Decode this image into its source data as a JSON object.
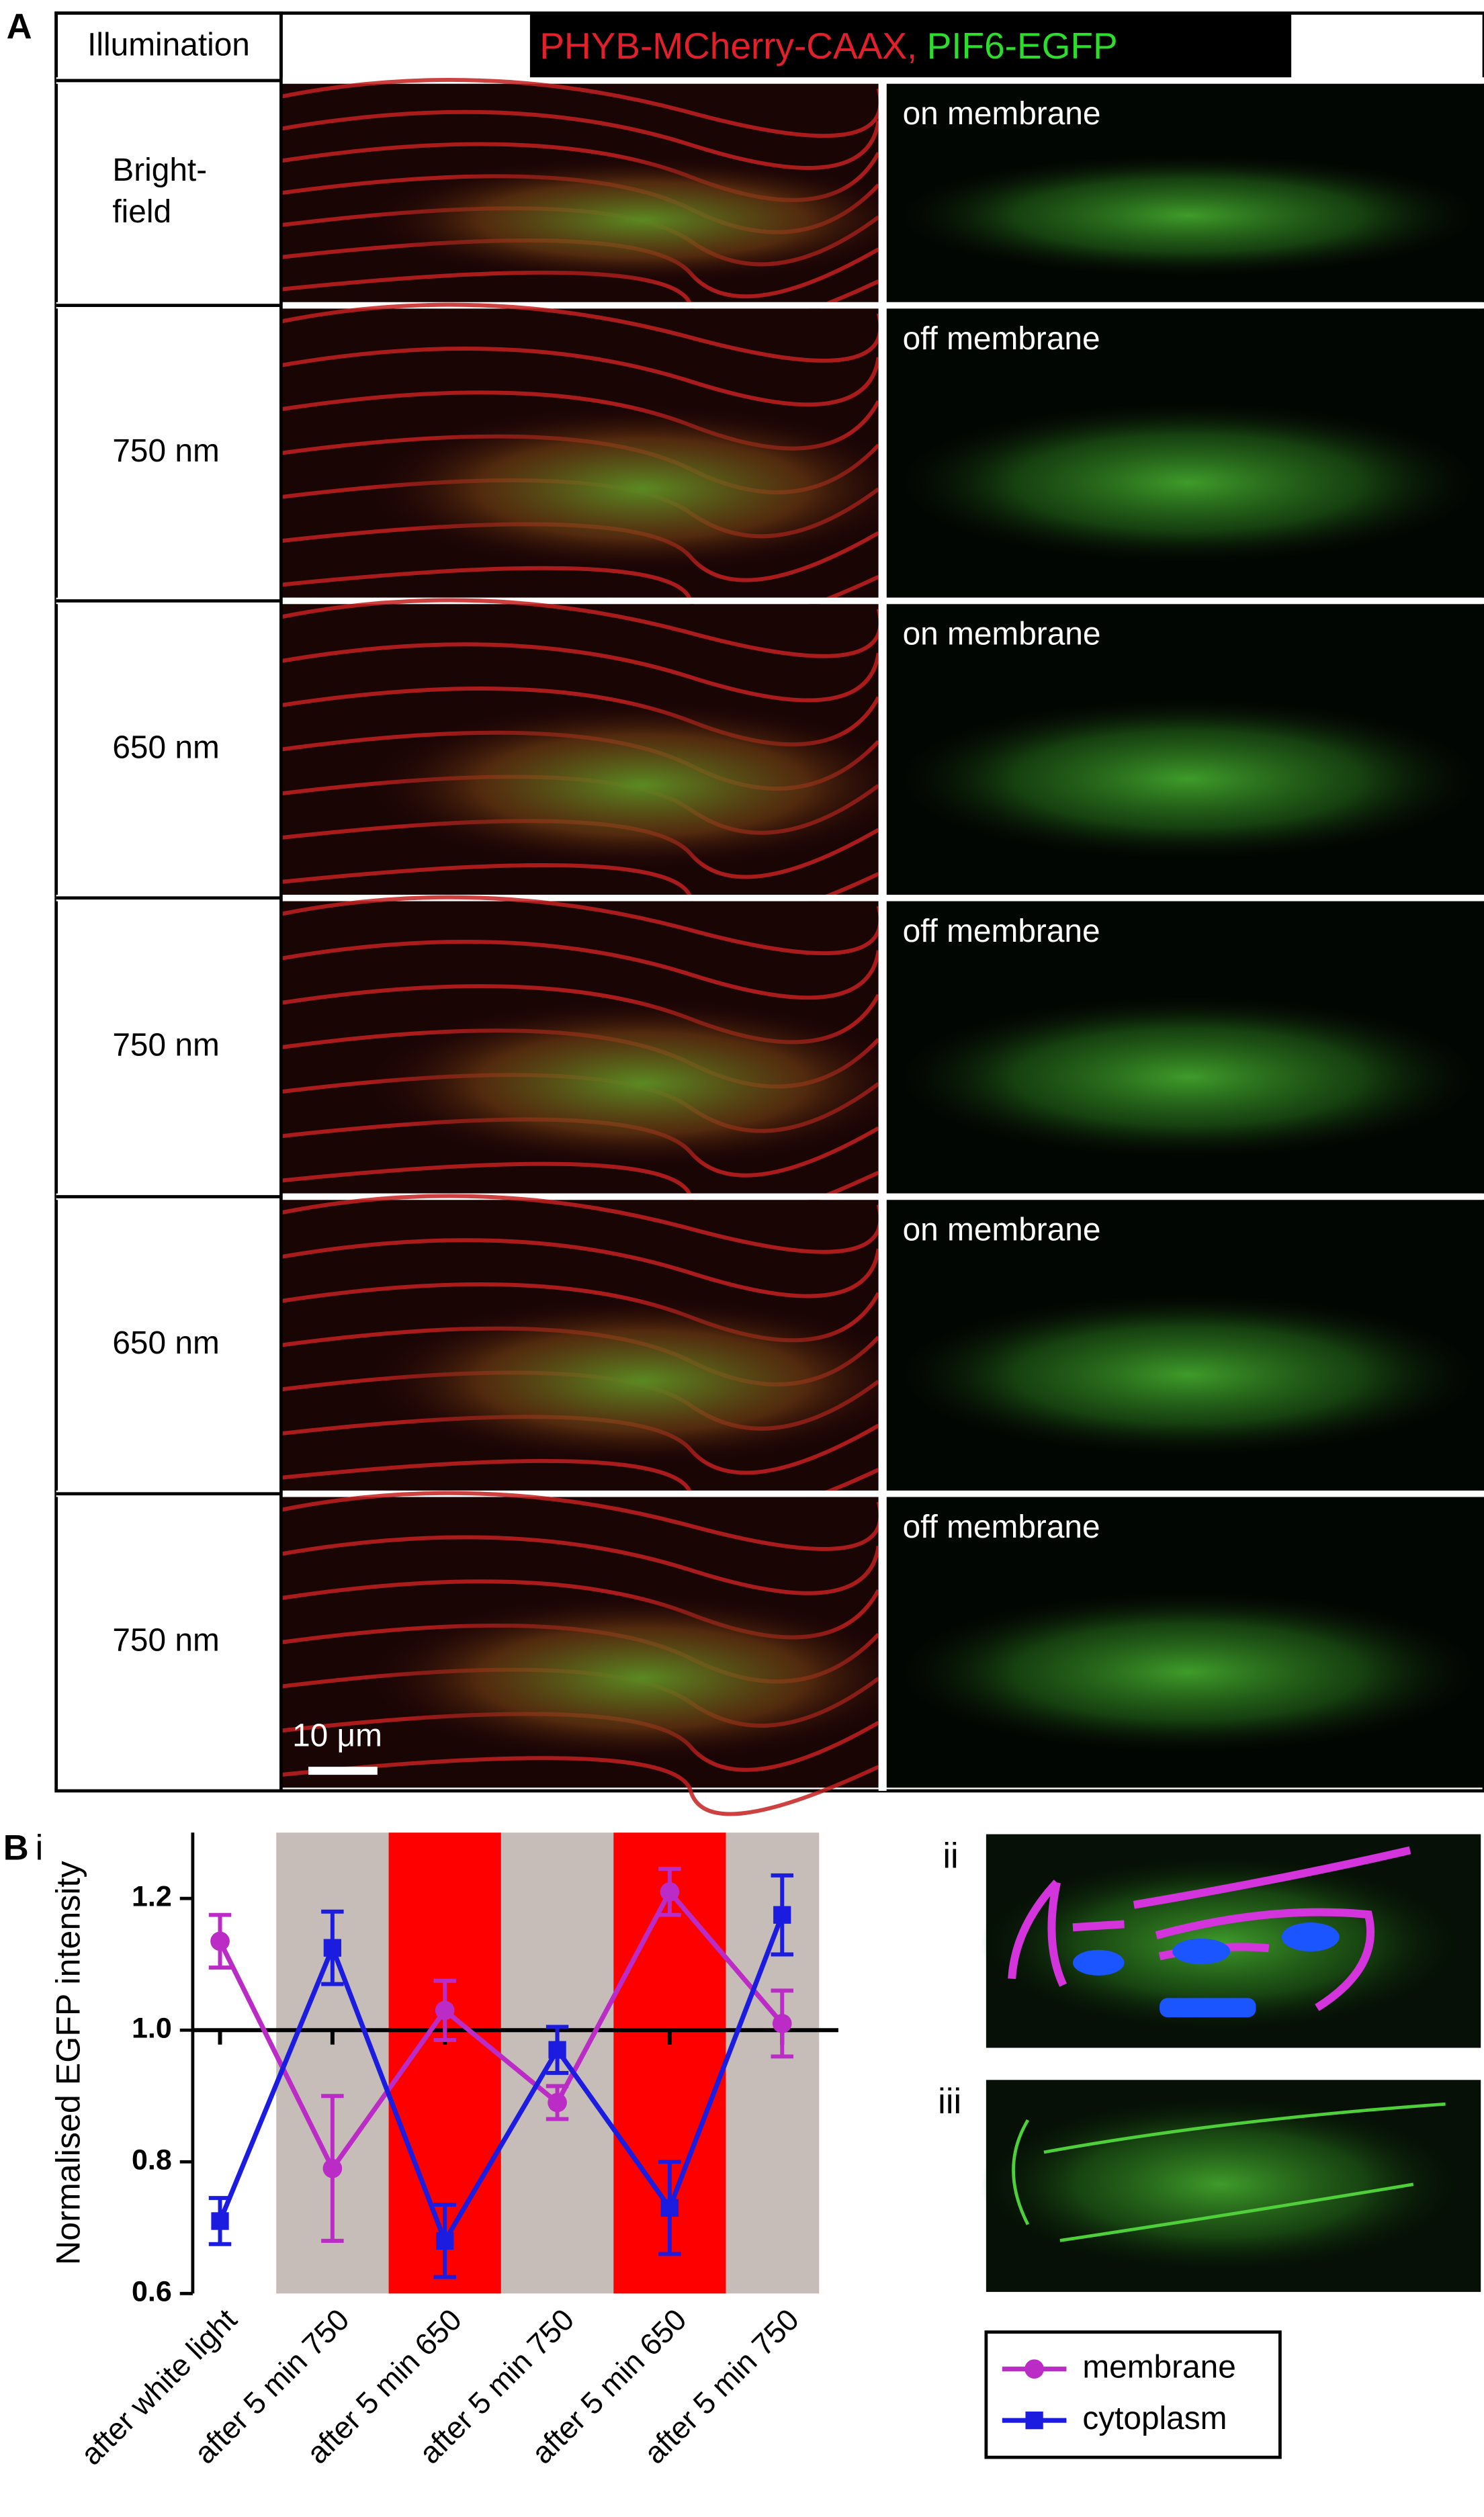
{
  "panel_a": {
    "label": "A",
    "header": "Illumination",
    "title_parts": [
      "PHYB-MCherry-CAAX,",
      "PIF6-EGFP"
    ],
    "rows": [
      {
        "illumination_lines": [
          "Bright-",
          "field"
        ],
        "state": "on membrane"
      },
      {
        "illumination_lines": [
          "750 nm"
        ],
        "state": "off membrane"
      },
      {
        "illumination_lines": [
          "650 nm"
        ],
        "state": "on membrane"
      },
      {
        "illumination_lines": [
          "750 nm"
        ],
        "state": "off membrane"
      },
      {
        "illumination_lines": [
          "650 nm"
        ],
        "state": "on membrane"
      },
      {
        "illumination_lines": [
          "750 nm"
        ],
        "state": "off membrane"
      }
    ],
    "scale_bar": "10 μm"
  },
  "panel_b": {
    "label": "B",
    "sublabels": [
      "i",
      "ii",
      "iii"
    ]
  },
  "chart_data": {
    "type": "line",
    "y_label": "Normalised EGFP intensity",
    "categories": [
      "after white light",
      "after 5 min 750",
      "after 5 min 650",
      "after 5 min 750",
      "after 5 min 650",
      "after 5 min 750"
    ],
    "band_colors": [
      "#ffffff",
      "#c6bdb9",
      "#ff0000",
      "#c6bdb9",
      "#ff0000",
      "#c6bdb9"
    ],
    "hline": 1,
    "ylim": [
      0.6,
      1.3
    ],
    "yticks": [
      {
        "value": 0.6,
        "label": "0.6"
      },
      {
        "value": 0.8,
        "label": "0.8"
      },
      {
        "value": 1.0,
        "label": "1.0"
      },
      {
        "value": 1.2,
        "label": "1.2"
      }
    ],
    "series": [
      {
        "name": "membrane",
        "color": "#bb2bc6",
        "marker": "circle",
        "values": [
          1.135,
          0.79,
          1.03,
          0.89,
          1.21,
          1.01
        ],
        "errors": [
          0.04,
          0.11,
          0.045,
          0.025,
          0.035,
          0.05
        ]
      },
      {
        "name": "cytoplasm",
        "color": "#1c1ce0",
        "marker": "square",
        "values": [
          0.71,
          1.125,
          0.68,
          0.97,
          0.73,
          1.175
        ],
        "errors": [
          0.035,
          0.055,
          0.055,
          0.035,
          0.07,
          0.06
        ]
      }
    ]
  }
}
